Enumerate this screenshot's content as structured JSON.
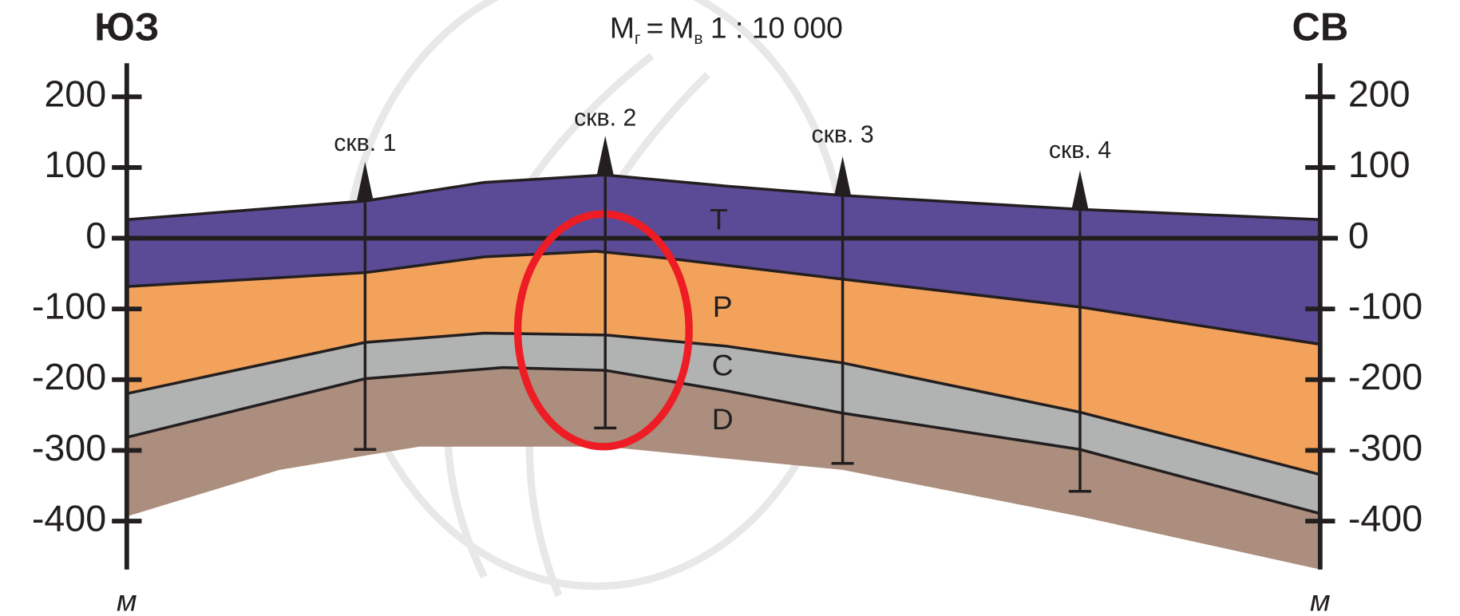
{
  "title": {
    "m_horizontal": "M",
    "sub_horizontal": "г",
    "equals": "=",
    "m_vertical": "M",
    "sub_vertical": "в",
    "ratio": "1 : 10 000"
  },
  "left_direction": "ЮЗ",
  "right_direction": "СВ",
  "left_axis": {
    "ticks": [
      200,
      100,
      0,
      -100,
      -200,
      -300,
      -400
    ],
    "unit": "м"
  },
  "right_axis": {
    "ticks": [
      200,
      100,
      0,
      -100,
      -200,
      -300,
      -400
    ],
    "unit": "м"
  },
  "wells": [
    {
      "label": "скв. 1"
    },
    {
      "label": "скв. 2"
    },
    {
      "label": "скв. 3"
    },
    {
      "label": "скв. 4"
    }
  ],
  "layers": [
    {
      "label": "T"
    },
    {
      "label": "P"
    },
    {
      "label": "C"
    },
    {
      "label": "D"
    }
  ]
}
